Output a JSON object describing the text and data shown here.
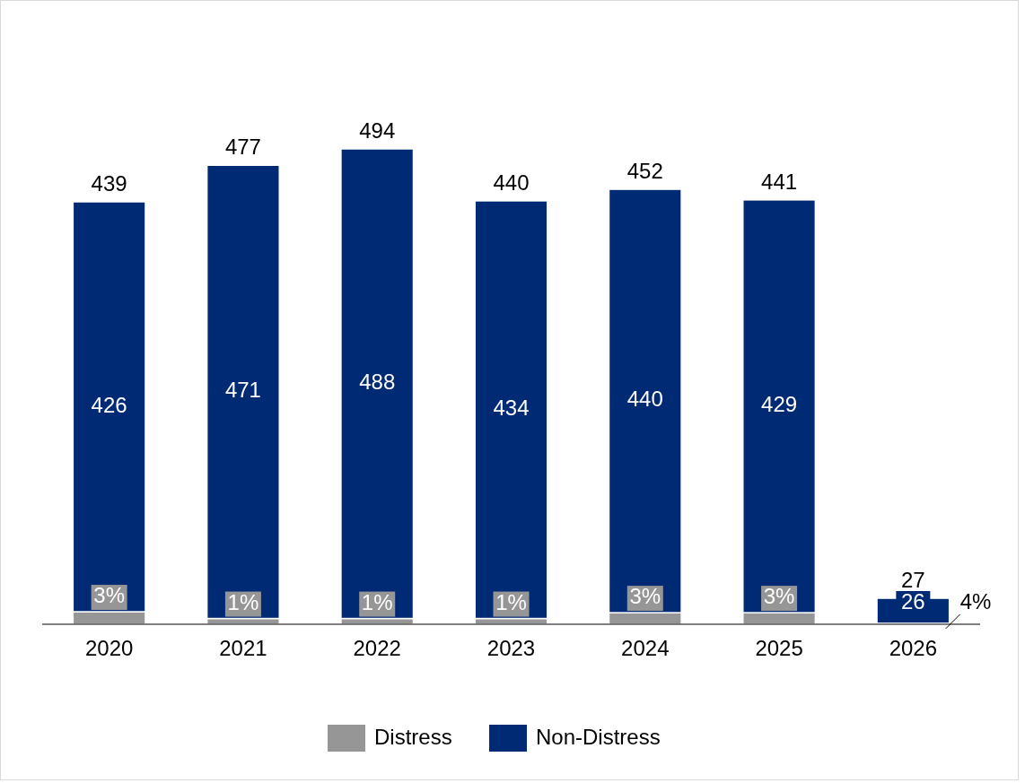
{
  "chart_data": {
    "type": "bar",
    "stacked": true,
    "categories": [
      "2020",
      "2021",
      "2022",
      "2023",
      "2024",
      "2025",
      "2026"
    ],
    "series": [
      {
        "name": "Distress",
        "color": "#969696",
        "values": [
          13,
          6,
          6,
          6,
          12,
          12,
          1
        ]
      },
      {
        "name": "Non-Distress",
        "color": "#002a74",
        "values": [
          426,
          471,
          488,
          434,
          440,
          429,
          26
        ],
        "value_labels": [
          "426",
          "471",
          "488",
          "434",
          "440",
          "429",
          "26"
        ]
      }
    ],
    "annotations": [
      "3%",
      "1%",
      "1%",
      "1%",
      "3%",
      "3%",
      "4%"
    ],
    "totals": [
      "439",
      "477",
      "494",
      "440",
      "452",
      "441",
      "27"
    ],
    "legend": "bottom"
  }
}
